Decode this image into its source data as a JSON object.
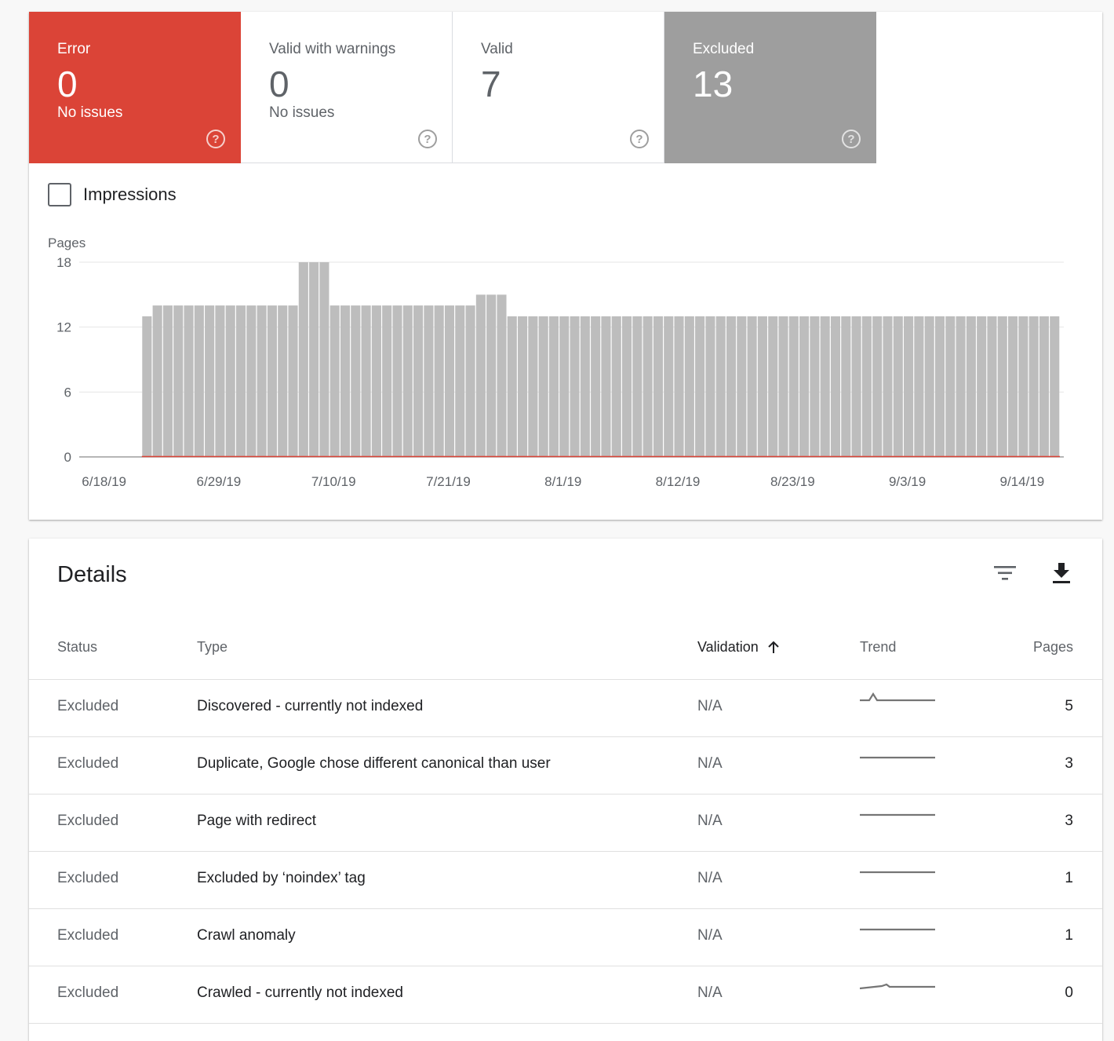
{
  "tiles": [
    {
      "id": "error",
      "label": "Error",
      "count": "0",
      "sub": "No issues"
    },
    {
      "id": "warnings",
      "label": "Valid with warnings",
      "count": "0",
      "sub": "No issues"
    },
    {
      "id": "valid",
      "label": "Valid",
      "count": "7",
      "sub": ""
    },
    {
      "id": "excluded",
      "label": "Excluded",
      "count": "13",
      "sub": ""
    }
  ],
  "impressions": {
    "label": "Impressions",
    "checked": false
  },
  "chart_data": {
    "type": "bar",
    "ylabel": "Pages",
    "ylim": [
      0,
      18
    ],
    "yticks": [
      0,
      6,
      12,
      18
    ],
    "xticks": [
      "6/18/19",
      "6/29/19",
      "7/10/19",
      "7/21/19",
      "8/1/19",
      "8/12/19",
      "8/23/19",
      "9/3/19",
      "9/14/19"
    ],
    "series": [
      {
        "values": [
          0,
          0,
          0,
          0,
          0,
          0,
          13,
          14,
          14,
          14,
          14,
          14,
          14,
          14,
          14,
          14,
          14,
          14,
          14,
          14,
          14,
          18,
          18,
          18,
          14,
          14,
          14,
          14,
          14,
          14,
          14,
          14,
          14,
          14,
          14,
          14,
          14,
          14,
          15,
          15,
          15,
          13,
          13,
          13,
          13,
          13,
          13,
          13,
          13,
          13,
          13,
          13,
          13,
          13,
          13,
          13,
          13,
          13,
          13,
          13,
          13,
          13,
          13,
          13,
          13,
          13,
          13,
          13,
          13,
          13,
          13,
          13,
          13,
          13,
          13,
          13,
          13,
          13,
          13,
          13,
          13,
          13,
          13,
          13,
          13,
          13,
          13,
          13,
          13,
          13,
          13,
          13,
          13,
          13
        ]
      }
    ],
    "bar_color": "#bdbdbd",
    "error_line_color": "#db4437"
  },
  "details": {
    "title": "Details",
    "columns": {
      "status": "Status",
      "type": "Type",
      "validation": "Validation",
      "trend": "Trend",
      "pages": "Pages"
    },
    "rows": [
      {
        "status": "Excluded",
        "type": "Discovered - currently not indexed",
        "validation": "N/A",
        "pages": "5",
        "trend": "spike-early"
      },
      {
        "status": "Excluded",
        "type": "Duplicate, Google chose different canonical than user",
        "validation": "N/A",
        "pages": "3",
        "trend": "flat"
      },
      {
        "status": "Excluded",
        "type": "Page with redirect",
        "validation": "N/A",
        "pages": "3",
        "trend": "flat"
      },
      {
        "status": "Excluded",
        "type": "Excluded by ‘noindex’ tag",
        "validation": "N/A",
        "pages": "1",
        "trend": "flat"
      },
      {
        "status": "Excluded",
        "type": "Crawl anomaly",
        "validation": "N/A",
        "pages": "1",
        "trend": "flat"
      },
      {
        "status": "Excluded",
        "type": "Crawled - currently not indexed",
        "validation": "N/A",
        "pages": "0",
        "trend": "bump-mid"
      }
    ]
  }
}
